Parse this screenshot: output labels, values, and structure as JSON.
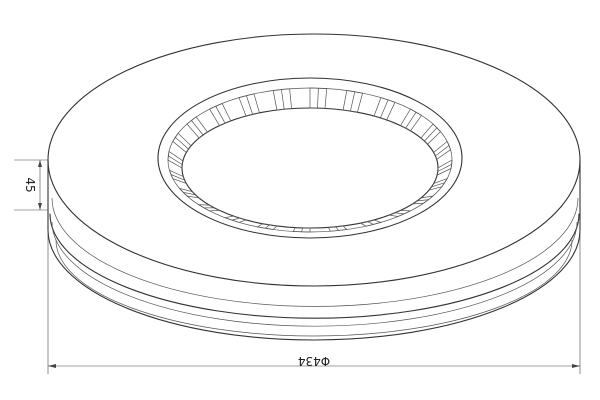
{
  "drawing": {
    "subject": "brake-disc",
    "dimensions": {
      "thickness_label": "45",
      "diameter_label": "Φ434"
    },
    "teeth": 24,
    "colors": {
      "line": "#333333",
      "background": "#ffffff"
    }
  }
}
